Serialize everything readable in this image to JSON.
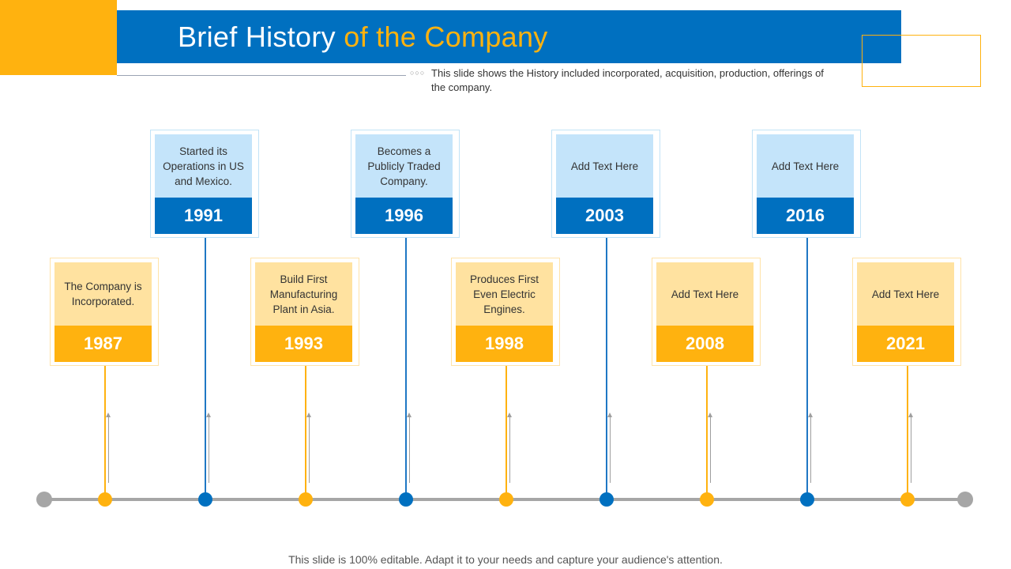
{
  "header": {
    "title_main": "Brief History",
    "title_accent": "of the Company",
    "subtitle": "This slide shows the History included incorporated, acquisition, production, offerings of the company.",
    "dots": "○○○"
  },
  "timeline": {
    "events": [
      {
        "year": "1987",
        "text": "The Company is Incorporated.",
        "color": "#FFB20F"
      },
      {
        "year": "1991",
        "text": "Started its Operations in US and Mexico.",
        "color": "#0070C0"
      },
      {
        "year": "1993",
        "text": "Build First Manufacturing Plant in Asia.",
        "color": "#FFB20F"
      },
      {
        "year": "1996",
        "text": "Becomes a Publicly Traded Company.",
        "color": "#0070C0"
      },
      {
        "year": "1998",
        "text": "Produces First Even Electric Engines.",
        "color": "#FFB20F"
      },
      {
        "year": "2003",
        "text": "Add Text Here",
        "color": "#0070C0"
      },
      {
        "year": "2008",
        "text": "Add Text Here",
        "color": "#FFB20F"
      },
      {
        "year": "2016",
        "text": "Add Text Here",
        "color": "#0070C0"
      },
      {
        "year": "2021",
        "text": "Add Text Here",
        "color": "#FFB20F"
      }
    ]
  },
  "footer": {
    "text": "This slide is 100% editable. Adapt it to your needs and capture your audience's attention."
  }
}
